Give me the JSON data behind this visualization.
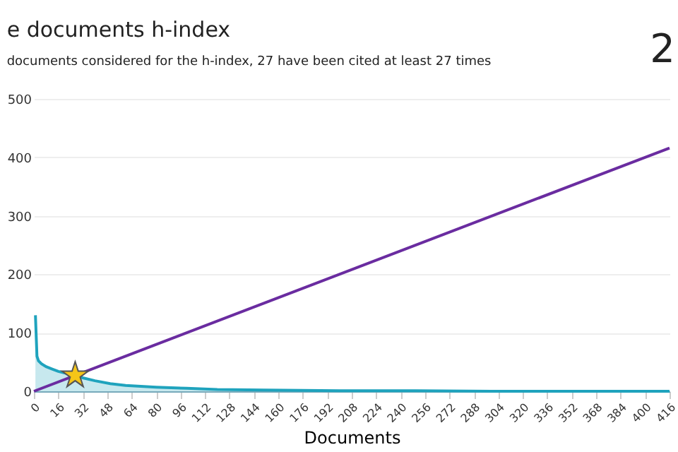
{
  "chart_data": {
    "type": "area",
    "title": "e documents h-index",
    "subtitle": "documents considered for the h-index, 27 have been cited at least 27 times",
    "xlabel": "Documents",
    "annotations": [
      "2"
    ],
    "xlim": [
      0,
      416
    ],
    "xticks": [
      0,
      16,
      32,
      48,
      64,
      80,
      96,
      112,
      128,
      144,
      160,
      176,
      192,
      208,
      224,
      240,
      256,
      272,
      288,
      304,
      320,
      336,
      352,
      368,
      384,
      400,
      416
    ],
    "ylim": [
      0,
      500
    ],
    "yticks": [
      0,
      100,
      200,
      300,
      400,
      500
    ],
    "grid": "y",
    "series": [
      {
        "color": "#1fa3bd",
        "x": [
          1,
          2,
          3,
          5,
          8,
          12,
          16,
          22,
          27,
          32,
          40,
          50,
          60,
          80,
          100,
          120,
          150,
          200,
          250,
          300,
          350,
          416
        ],
        "values": [
          130,
          60,
          52,
          47,
          42,
          38,
          34,
          30,
          27,
          23,
          18,
          13,
          10,
          7,
          5,
          3,
          2,
          1,
          1,
          0,
          0,
          0
        ]
      },
      {
        "type": "line",
        "color": "#6a2ca0",
        "x": [
          0,
          416
        ],
        "values": [
          0,
          416
        ]
      },
      {
        "type": "scatter",
        "color": "#f5c518",
        "marker": "star",
        "x": [
          27
        ],
        "values": [
          27
        ]
      }
    ]
  }
}
